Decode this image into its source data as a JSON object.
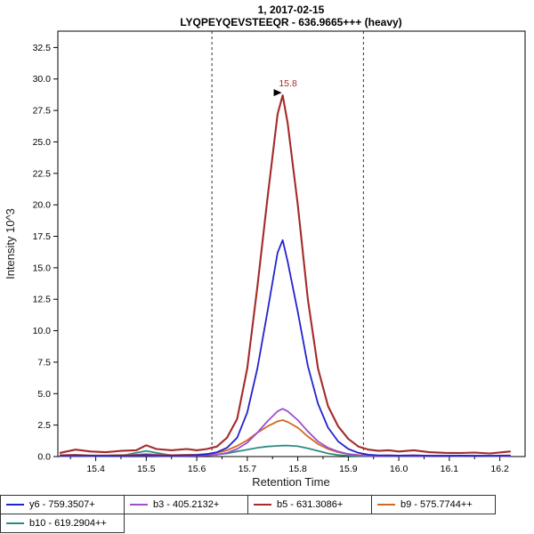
{
  "chart_data": {
    "type": "line",
    "title": "1, 2017-02-15",
    "subtitle": "LYQPEYQEVSTEEQR - 636.9665+++ (heavy)",
    "xlabel": "Retention Time",
    "ylabel": "Intensity 10^3",
    "xlim": [
      15.325,
      16.25
    ],
    "ylim": [
      0,
      33.8
    ],
    "x_ticks": [
      15.4,
      15.5,
      15.6,
      15.7,
      15.8,
      15.9,
      16.0,
      16.1,
      16.2
    ],
    "y_ticks": [
      0.0,
      2.5,
      5.0,
      7.5,
      10.0,
      12.5,
      15.0,
      17.5,
      20.0,
      22.5,
      25.0,
      27.5,
      30.0,
      32.5
    ],
    "grid": false,
    "legend_position": "bottom",
    "boundaries": [
      15.63,
      15.93
    ],
    "annotation": {
      "text": "15.8",
      "x": 15.77,
      "y": 28.7,
      "color": "#a52a2a"
    },
    "draw_order": [
      4,
      3,
      1,
      0,
      2
    ],
    "x": [
      15.33,
      15.36,
      15.39,
      15.42,
      15.45,
      15.48,
      15.5,
      15.52,
      15.55,
      15.58,
      15.6,
      15.62,
      15.64,
      15.66,
      15.68,
      15.7,
      15.72,
      15.74,
      15.76,
      15.77,
      15.78,
      15.8,
      15.82,
      15.84,
      15.86,
      15.88,
      15.9,
      15.92,
      15.94,
      15.96,
      15.98,
      16.0,
      16.03,
      16.06,
      16.09,
      16.12,
      16.15,
      16.18,
      16.22
    ],
    "series": [
      {
        "name": "y6 - 759.3507+",
        "color": "#2323cc",
        "stroke_width": 1.8,
        "values": [
          0.08,
          0.1,
          0.07,
          0.06,
          0.08,
          0.1,
          0.12,
          0.1,
          0.08,
          0.1,
          0.12,
          0.2,
          0.35,
          0.7,
          1.5,
          3.5,
          7.0,
          11.5,
          16.2,
          17.2,
          15.5,
          11.5,
          7.2,
          4.2,
          2.3,
          1.2,
          0.6,
          0.3,
          0.15,
          0.1,
          0.1,
          0.08,
          0.1,
          0.07,
          0.06,
          0.08,
          0.06,
          0.07,
          0.08
        ]
      },
      {
        "name": "b3 - 405.2132+",
        "color": "#9b4fd1",
        "stroke_width": 1.8,
        "values": [
          0.05,
          0.06,
          0.05,
          0.05,
          0.06,
          0.07,
          0.08,
          0.06,
          0.05,
          0.06,
          0.07,
          0.1,
          0.15,
          0.3,
          0.6,
          1.1,
          1.9,
          2.8,
          3.6,
          3.8,
          3.6,
          2.9,
          2.0,
          1.2,
          0.7,
          0.4,
          0.2,
          0.1,
          0.07,
          0.05,
          0.06,
          0.05,
          0.05,
          0.04,
          0.05,
          0.04,
          0.05,
          0.04,
          0.05
        ]
      },
      {
        "name": "b5 - 631.3086+",
        "color": "#a52a2a",
        "stroke_width": 2.1,
        "values": [
          0.3,
          0.55,
          0.4,
          0.35,
          0.45,
          0.5,
          0.9,
          0.6,
          0.5,
          0.6,
          0.5,
          0.6,
          0.8,
          1.5,
          3.0,
          7.0,
          13.5,
          20.5,
          27.2,
          28.7,
          26.5,
          20.0,
          12.5,
          7.0,
          4.0,
          2.4,
          1.4,
          0.8,
          0.55,
          0.45,
          0.5,
          0.4,
          0.5,
          0.35,
          0.3,
          0.28,
          0.32,
          0.25,
          0.4
        ]
      },
      {
        "name": "b9 - 575.7744++",
        "color": "#d2691e",
        "stroke_width": 1.8,
        "values": [
          0.12,
          0.15,
          0.1,
          0.1,
          0.12,
          0.15,
          0.2,
          0.15,
          0.12,
          0.15,
          0.15,
          0.2,
          0.3,
          0.5,
          0.85,
          1.3,
          1.9,
          2.4,
          2.8,
          2.9,
          2.75,
          2.3,
          1.6,
          1.0,
          0.6,
          0.35,
          0.2,
          0.12,
          0.1,
          0.08,
          0.1,
          0.08,
          0.1,
          0.07,
          0.08,
          0.07,
          0.08,
          0.06,
          0.1
        ]
      },
      {
        "name": "b10 - 619.2904++",
        "color": "#2c8c85",
        "stroke_width": 1.8,
        "values": [
          0.05,
          0.06,
          0.05,
          0.05,
          0.06,
          0.3,
          0.45,
          0.3,
          0.1,
          0.08,
          0.08,
          0.1,
          0.15,
          0.25,
          0.4,
          0.55,
          0.7,
          0.8,
          0.85,
          0.87,
          0.88,
          0.82,
          0.65,
          0.45,
          0.25,
          0.12,
          0.07,
          0.05,
          0.04,
          0.04,
          0.05,
          0.04,
          0.04,
          0.04,
          0.04,
          0.03,
          0.04,
          0.03,
          0.04
        ]
      }
    ]
  }
}
